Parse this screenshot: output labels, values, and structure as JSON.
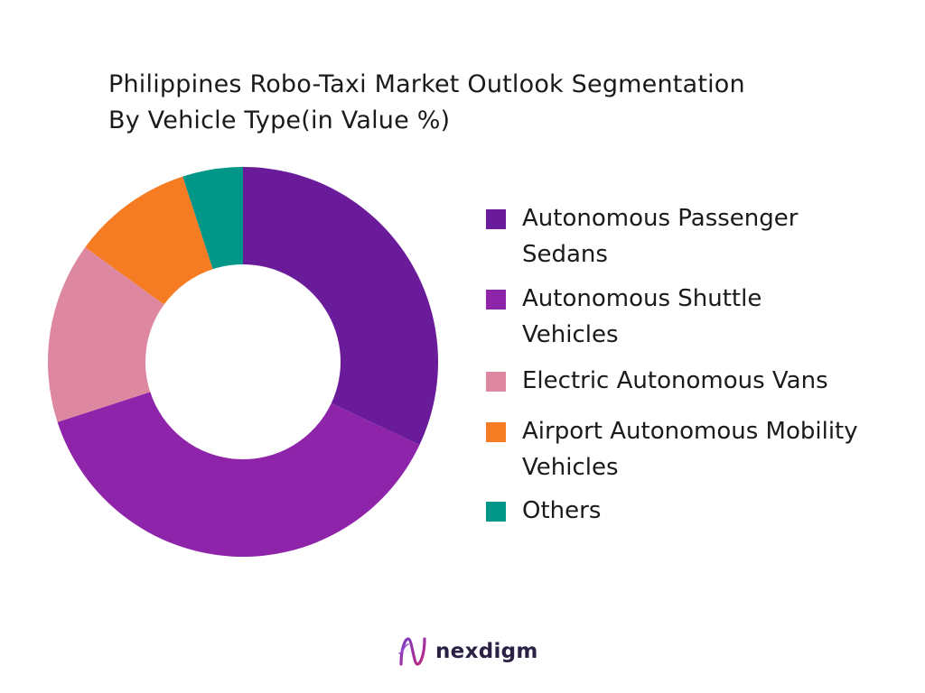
{
  "chart_data": {
    "type": "pie",
    "title_line1": "Philippines Robo-Taxi Market Outlook Segmentation",
    "title_line2": "By Vehicle Type(in Value %)",
    "categories": [
      "Autonomous Passenger Sedans",
      "Autonomous Shuttle Vehicles",
      "Electric Autonomous Vans",
      "Airport Autonomous Mobility Vehicles",
      "Others"
    ],
    "values": [
      32,
      38,
      15,
      10,
      5
    ],
    "colors": [
      "#6a1b9a",
      "#8e24aa",
      "#de87a0",
      "#f57c22",
      "#009688"
    ],
    "donut": true,
    "legend_position": "right"
  },
  "legend": {
    "items": [
      {
        "label": "Autonomous Passenger Sedans",
        "color": "#6a1b9a"
      },
      {
        "label": "Autonomous Shuttle Vehicles",
        "color": "#8e24aa"
      },
      {
        "label": "Electric Autonomous Vans",
        "color": "#de87a0"
      },
      {
        "label": "Airport Autonomous Mobility Vehicles",
        "color": "#f57c22"
      },
      {
        "label": "Others",
        "color": "#009688"
      }
    ]
  },
  "branding": {
    "logo_text": "nexdigm",
    "logo_icon": "nexdigm-logo-icon"
  }
}
